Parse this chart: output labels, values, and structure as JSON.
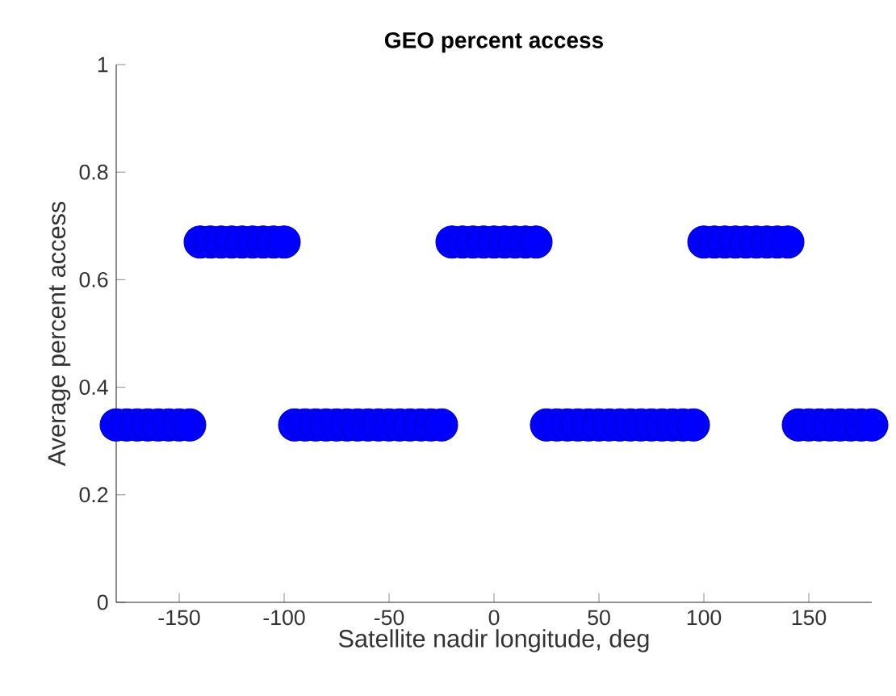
{
  "chart_data": {
    "type": "scatter",
    "title": "GEO percent access",
    "xlabel": "Satellite nadir longitude, deg",
    "ylabel": "Average percent access",
    "x": [
      -180,
      -175,
      -170,
      -165,
      -160,
      -155,
      -150,
      -145,
      -140,
      -135,
      -130,
      -125,
      -120,
      -115,
      -110,
      -105,
      -100,
      -95,
      -90,
      -85,
      -80,
      -75,
      -70,
      -65,
      -60,
      -55,
      -50,
      -45,
      -40,
      -35,
      -30,
      -25,
      -20,
      -15,
      -10,
      -5,
      0,
      5,
      10,
      15,
      20,
      25,
      30,
      35,
      40,
      45,
      50,
      55,
      60,
      65,
      70,
      75,
      80,
      85,
      90,
      95,
      100,
      105,
      110,
      115,
      120,
      125,
      130,
      135,
      140,
      145,
      150,
      155,
      160,
      165,
      170,
      175,
      180
    ],
    "series": [
      {
        "color": "#0000ff",
        "values": [
          0.33,
          0.33,
          0.33,
          0.33,
          0.33,
          0.33,
          0.33,
          0.33,
          0.67,
          0.67,
          0.67,
          0.67,
          0.67,
          0.67,
          0.67,
          0.67,
          0.67,
          0.33,
          0.33,
          0.33,
          0.33,
          0.33,
          0.33,
          0.33,
          0.33,
          0.33,
          0.33,
          0.33,
          0.33,
          0.33,
          0.33,
          0.33,
          0.67,
          0.67,
          0.67,
          0.67,
          0.67,
          0.67,
          0.67,
          0.67,
          0.67,
          0.33,
          0.33,
          0.33,
          0.33,
          0.33,
          0.33,
          0.33,
          0.33,
          0.33,
          0.33,
          0.33,
          0.33,
          0.33,
          0.33,
          0.33,
          0.67,
          0.67,
          0.67,
          0.67,
          0.67,
          0.67,
          0.67,
          0.67,
          0.67,
          0.33,
          0.33,
          0.33,
          0.33,
          0.33,
          0.33,
          0.33,
          0.33
        ]
      }
    ],
    "xlim": [
      -180,
      180
    ],
    "ylim": [
      0,
      1
    ],
    "xticks": [
      -150,
      -100,
      -50,
      0,
      50,
      100,
      150
    ],
    "yticks": [
      0,
      0.2,
      0.4,
      0.6,
      0.8,
      1
    ]
  }
}
